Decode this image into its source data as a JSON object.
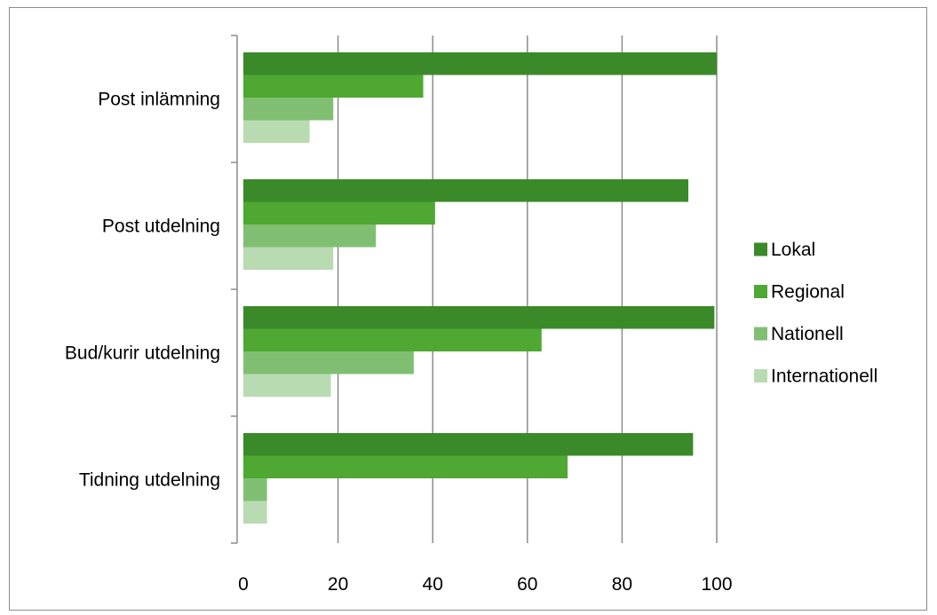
{
  "chart_data": {
    "type": "bar",
    "orientation": "horizontal",
    "title": "",
    "xlabel": "",
    "ylabel": "",
    "xlim": [
      0,
      100
    ],
    "x_ticks": [
      0,
      20,
      40,
      60,
      80,
      100
    ],
    "grid": "vertical major gridlines",
    "legend_position": "right",
    "categories": [
      "Post inlämning",
      "Post utdelning",
      "Bud/kurir utdelning",
      "Tidning utdelning"
    ],
    "series": [
      {
        "name": "Lokal",
        "color": "#3b8a2a",
        "values": [
          100,
          94,
          99.5,
          95
        ]
      },
      {
        "name": "Regional",
        "color": "#4ea832",
        "values": [
          38,
          40.5,
          63,
          68.5
        ]
      },
      {
        "name": "Nationell",
        "color": "#80bf72",
        "values": [
          19,
          28,
          36,
          5
        ]
      },
      {
        "name": "Internationell",
        "color": "#b9dbb1",
        "values": [
          14,
          19,
          18.5,
          5
        ]
      }
    ]
  }
}
